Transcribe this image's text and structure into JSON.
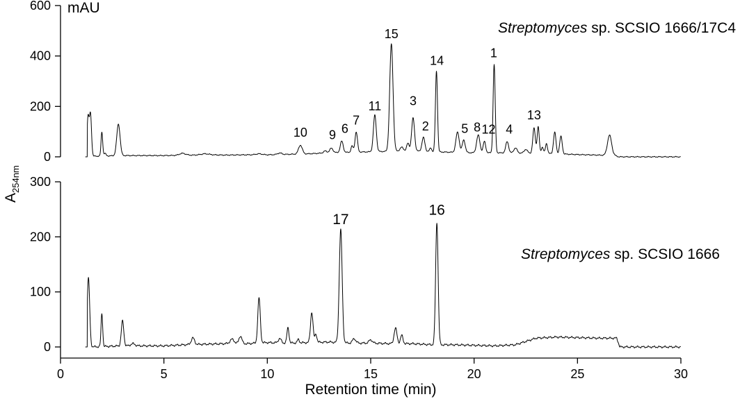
{
  "chart_data": [
    {
      "type": "line",
      "title": "Streptomyces sp. SCSIO 1666/17C4",
      "title_italic": "Streptomyces",
      "title_rest": " sp. SCSIO 1666/17C4",
      "units_label": "mAU",
      "ylim": [
        0,
        600
      ],
      "yticks": [
        0,
        200,
        400,
        600
      ],
      "xlim": [
        0,
        30
      ],
      "series": [
        {
          "baseline": [
            [
              1.2,
              0
            ],
            [
              1.4,
              2
            ],
            [
              3,
              5
            ],
            [
              5,
              5
            ],
            [
              6,
              6
            ],
            [
              7,
              8
            ],
            [
              8,
              7
            ],
            [
              9,
              8
            ],
            [
              10,
              8
            ],
            [
              11,
              10
            ],
            [
              12,
              12
            ],
            [
              13,
              16
            ],
            [
              14,
              18
            ],
            [
              15,
              20
            ],
            [
              16,
              22
            ],
            [
              17,
              24
            ],
            [
              18,
              20
            ],
            [
              19,
              18
            ],
            [
              20,
              16
            ],
            [
              21,
              16
            ],
            [
              22,
              15
            ],
            [
              23,
              14
            ],
            [
              24,
              12
            ],
            [
              25,
              9
            ],
            [
              26,
              7
            ],
            [
              26.8,
              5
            ],
            [
              27,
              0
            ],
            [
              30,
              0
            ]
          ],
          "peaks": [
            [
              1.33,
              155,
              0.05
            ],
            [
              1.45,
              165,
              0.05
            ],
            [
              2.0,
              95,
              0.04
            ],
            [
              2.15,
              10,
              0.05
            ],
            [
              2.8,
              125,
              0.08
            ],
            [
              5.9,
              8,
              0.15
            ],
            [
              7.0,
              4,
              0.2
            ],
            [
              9.6,
              4,
              0.15
            ],
            [
              10.6,
              6,
              0.1
            ],
            [
              11.6,
              35,
              0.09
            ],
            [
              12.8,
              8,
              0.08
            ],
            [
              13.1,
              18,
              0.08
            ],
            [
              13.6,
              45,
              0.07
            ],
            [
              14.1,
              25,
              0.05
            ],
            [
              14.3,
              80,
              0.06
            ],
            [
              15.2,
              145,
              0.07
            ],
            [
              16.0,
              425,
              0.08
            ],
            [
              16.5,
              15,
              0.08
            ],
            [
              16.8,
              30,
              0.06
            ],
            [
              17.05,
              130,
              0.07
            ],
            [
              17.55,
              55,
              0.07
            ],
            [
              17.9,
              15,
              0.05
            ],
            [
              18.18,
              320,
              0.05
            ],
            [
              19.2,
              80,
              0.08
            ],
            [
              19.5,
              50,
              0.07
            ],
            [
              20.2,
              70,
              0.08
            ],
            [
              20.5,
              45,
              0.06
            ],
            [
              20.97,
              350,
              0.05
            ],
            [
              21.6,
              45,
              0.07
            ],
            [
              22.0,
              20,
              0.08
            ],
            [
              22.5,
              15,
              0.08
            ],
            [
              22.9,
              100,
              0.06
            ],
            [
              23.1,
              105,
              0.05
            ],
            [
              23.3,
              25,
              0.05
            ],
            [
              23.5,
              40,
              0.05
            ],
            [
              23.9,
              85,
              0.06
            ],
            [
              24.2,
              70,
              0.06
            ],
            [
              26.55,
              80,
              0.1
            ]
          ]
        }
      ],
      "peak_labels": [
        {
          "label": "15",
          "x": 16.0,
          "y": 470
        },
        {
          "label": "14",
          "x": 18.2,
          "y": 365
        },
        {
          "label": "1",
          "x": 20.95,
          "y": 395
        },
        {
          "label": "3",
          "x": 17.05,
          "y": 205
        },
        {
          "label": "11",
          "x": 15.2,
          "y": 185
        },
        {
          "label": "7",
          "x": 14.3,
          "y": 128
        },
        {
          "label": "6",
          "x": 13.75,
          "y": 95
        },
        {
          "label": "9",
          "x": 13.15,
          "y": 70
        },
        {
          "label": "10",
          "x": 11.6,
          "y": 80
        },
        {
          "label": "2",
          "x": 17.65,
          "y": 105
        },
        {
          "label": "5",
          "x": 19.55,
          "y": 95
        },
        {
          "label": "8",
          "x": 20.15,
          "y": 100
        },
        {
          "label": "12",
          "x": 20.7,
          "y": 92
        },
        {
          "label": "4",
          "x": 21.7,
          "y": 92
        },
        {
          "label": "13",
          "x": 22.9,
          "y": 148
        }
      ]
    },
    {
      "type": "line",
      "title": "Streptomyces sp. SCSIO 1666",
      "title_italic": "Streptomyces",
      "title_rest": " sp. SCSIO 1666",
      "ylim": [
        0,
        300
      ],
      "yticks": [
        0,
        100,
        200,
        300
      ],
      "xlim": [
        0,
        30
      ],
      "xticks": [
        0,
        5,
        10,
        15,
        20,
        25,
        30
      ],
      "xlabel": "Retention time (min)",
      "series": [
        {
          "baseline": [
            [
              1.2,
              0
            ],
            [
              1.4,
              0
            ],
            [
              3,
              2
            ],
            [
              5,
              2
            ],
            [
              6,
              4
            ],
            [
              7,
              5
            ],
            [
              8,
              6
            ],
            [
              9,
              6
            ],
            [
              10,
              8
            ],
            [
              11,
              7
            ],
            [
              12,
              8
            ],
            [
              13,
              9
            ],
            [
              14,
              7
            ],
            [
              15,
              7
            ],
            [
              16,
              6
            ],
            [
              17,
              6
            ],
            [
              18,
              4
            ],
            [
              19,
              4
            ],
            [
              20,
              3
            ],
            [
              21,
              2
            ],
            [
              22,
              4
            ],
            [
              23,
              16
            ],
            [
              24,
              18
            ],
            [
              25,
              17
            ],
            [
              26,
              16
            ],
            [
              26.9,
              16
            ],
            [
              27.05,
              0
            ],
            [
              30,
              0
            ]
          ],
          "peaks": [
            [
              1.35,
              125,
              0.06
            ],
            [
              2.0,
              60,
              0.04
            ],
            [
              3.0,
              45,
              0.06
            ],
            [
              3.5,
              4,
              0.1
            ],
            [
              6.4,
              12,
              0.08
            ],
            [
              8.3,
              8,
              0.1
            ],
            [
              8.7,
              14,
              0.07
            ],
            [
              9.6,
              82,
              0.06
            ],
            [
              10.6,
              8,
              0.07
            ],
            [
              11.0,
              28,
              0.05
            ],
            [
              11.5,
              6,
              0.05
            ],
            [
              12.15,
              55,
              0.06
            ],
            [
              12.35,
              15,
              0.05
            ],
            [
              13.55,
              205,
              0.07
            ],
            [
              14.2,
              8,
              0.08
            ],
            [
              15.0,
              6,
              0.08
            ],
            [
              16.2,
              28,
              0.07
            ],
            [
              16.5,
              15,
              0.06
            ],
            [
              18.2,
              222,
              0.06
            ]
          ]
        }
      ],
      "peak_labels": [
        {
          "label": "17",
          "x": 13.55,
          "y": 223
        },
        {
          "label": "16",
          "x": 18.2,
          "y": 240
        }
      ]
    }
  ],
  "ylabel_main": "A",
  "ylabel_sub": "254nm"
}
